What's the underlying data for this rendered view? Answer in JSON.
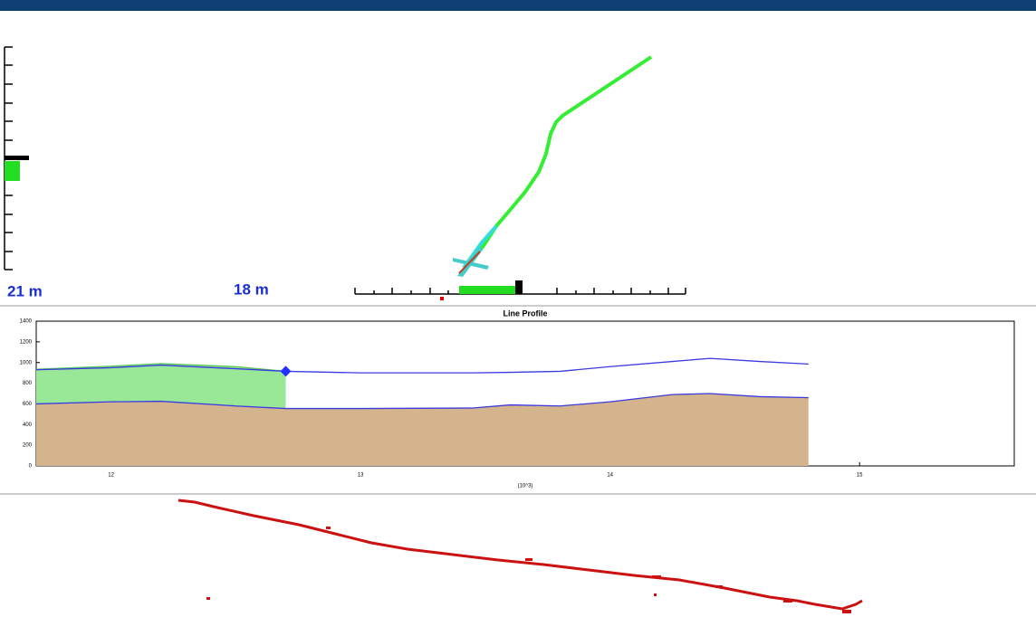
{
  "scale_labels": [
    "21 m",
    "18 m"
  ],
  "chart_data": {
    "type": "line",
    "title": "Line Profile",
    "xlabel": "(10^3)",
    "x": [
      11.7,
      12.0,
      12.2,
      12.5,
      12.7,
      13.0,
      13.45,
      13.6,
      13.8,
      14.0,
      14.25,
      14.4,
      14.6,
      14.795
    ],
    "xlim": [
      11.7,
      15.62
    ],
    "xticks": [
      12,
      13,
      14,
      15
    ],
    "ylim": [
      0,
      1400
    ],
    "yticks": [
      0,
      200,
      400,
      600,
      800,
      1000,
      1200,
      1400
    ],
    "grid": false,
    "series": [
      {
        "color": "#3a3ae0",
        "fill": "#d4b48c",
        "values": [
          600,
          620,
          625,
          580,
          555,
          555,
          560,
          590,
          580,
          620,
          690,
          700,
          670,
          660
        ]
      },
      {
        "color": "#58c858",
        "fill": "#98e898",
        "values": [
          935,
          965,
          990,
          960,
          915,
          null,
          null,
          null,
          null,
          null,
          null,
          null,
          null,
          null
        ]
      },
      {
        "color": "#3a3ae0",
        "values": [
          930,
          950,
          975,
          940,
          915,
          900,
          900,
          905,
          915,
          960,
          1010,
          1040,
          1010,
          985
        ]
      },
      {
        "color": "#2233ff",
        "marker": "diamond",
        "values": [
          null,
          null,
          null,
          null,
          915,
          null,
          null,
          null,
          null,
          null,
          null,
          null,
          null,
          null
        ]
      }
    ]
  }
}
